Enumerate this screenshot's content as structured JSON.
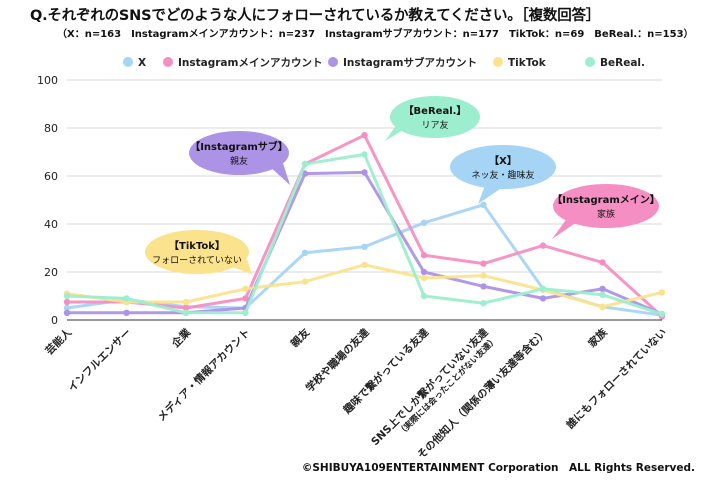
{
  "title": "Q.それぞれのSNSでどのような人にフォローされているか教えてください。［複数回答］",
  "subtitle": "（X：n=163　Instagramメインアカウント：n=237　Instagramサブアカウント：n=177　TikTok：n=69　BeReal.：n=153）",
  "copyright": "©SHIBUYA109ENTERTAINMENT Corporation　ALL Rights Reserved.",
  "colors": {
    "X": "#a6d4f5",
    "Instagram_main": "#f58fc3",
    "Instagram_sub": "#ad93e6",
    "TikTok": "#fbe38d",
    "BeReal": "#9ceece"
  },
  "chart_data": {
    "type": "line",
    "ylim": [
      0,
      100
    ],
    "yticks": [
      0,
      20,
      40,
      60,
      80,
      100
    ],
    "grid": true,
    "legend_position": "top",
    "categories": [
      "芸能人",
      "インフルエンサー",
      "企業",
      "メディア・情報アカウント",
      "親友",
      "学校や職場の友達",
      "趣味で繋がっている友達",
      "SNS上でしか繋がっていない友達",
      "その他知人（関係の薄い友達等含む）",
      "家族",
      "誰にもフォローされていない"
    ],
    "category_notes": [
      "",
      "",
      "",
      "",
      "",
      "",
      "",
      "（実際には会ったことがない友達）",
      "",
      "",
      ""
    ],
    "series": [
      {
        "name": "X",
        "color": "#a6d4f5",
        "values": [
          5,
          8.5,
          5.5,
          5,
          28,
          30.5,
          40.5,
          48,
          13,
          5.5,
          2
        ]
      },
      {
        "name": "Instagramメインアカウント",
        "color": "#f58fc3",
        "values": [
          7.5,
          7.5,
          5,
          9,
          65,
          77,
          27,
          23.5,
          31,
          24,
          1.5
        ]
      },
      {
        "name": "Instagramサブアカウント",
        "color": "#ad93e6",
        "values": [
          3,
          3,
          3,
          5,
          61,
          61.5,
          20,
          14,
          9,
          13,
          2.5
        ]
      },
      {
        "name": "TikTok",
        "color": "#fbe38d",
        "values": [
          11,
          7.5,
          7.5,
          13,
          16,
          23,
          17.5,
          18.5,
          12.5,
          5.5,
          11.5
        ]
      },
      {
        "name": "BeReal.",
        "color": "#9ceece",
        "values": [
          10,
          9,
          3,
          3,
          65,
          69,
          10,
          7,
          13,
          10.5,
          2.5
        ]
      }
    ],
    "annotations": [
      {
        "series": "TikTok",
        "title": "【TikTok】",
        "text": "フォローされていない",
        "color": "#fbe38d"
      },
      {
        "series": "Instagramサブアカウント",
        "title": "【Instagramサブ】",
        "text": "親友",
        "color": "#ad93e6"
      },
      {
        "series": "BeReal.",
        "title": "【BeReal.】",
        "text": "リア友",
        "color": "#9ceece"
      },
      {
        "series": "X",
        "title": "【X】",
        "text": "ネッ友・趣味友",
        "color": "#a6d4f5"
      },
      {
        "series": "Instagramメインアカウント",
        "title": "【Instagramメイン】",
        "text": "家族",
        "color": "#f58fc3"
      }
    ]
  }
}
